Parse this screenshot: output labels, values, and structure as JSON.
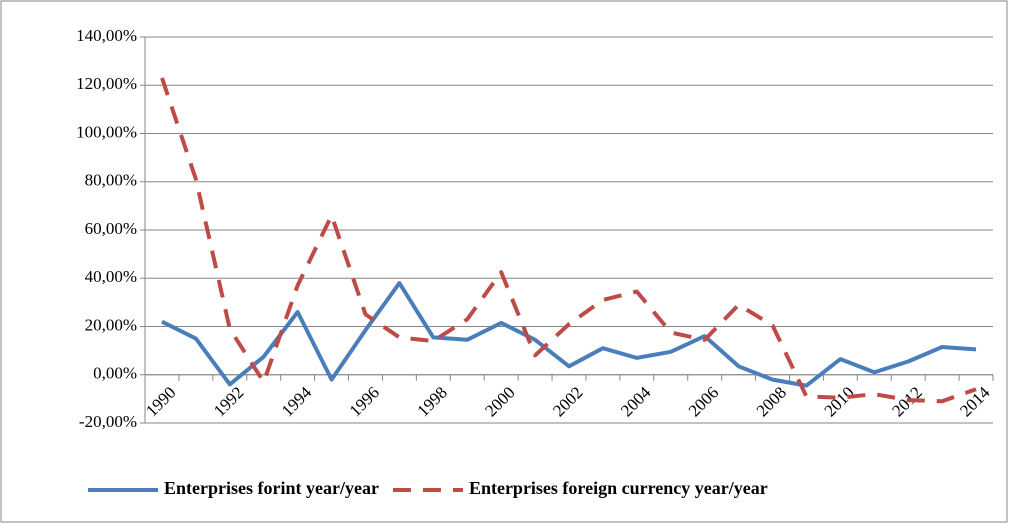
{
  "chart_data": {
    "type": "line",
    "categories": [
      "1990",
      null,
      "1992",
      null,
      "1994",
      null,
      "1996",
      null,
      "1998",
      null,
      "2000",
      null,
      "2002",
      null,
      "2004",
      null,
      "2006",
      null,
      "2008",
      null,
      "2010",
      null,
      "2012",
      null,
      "2014"
    ],
    "series": [
      {
        "name": "Enterprises forint year/year",
        "color": "#4a7ebb",
        "dash": "solid",
        "values": [
          22,
          15,
          -4,
          7.5,
          26,
          -2,
          18.5,
          38,
          15.5,
          14.5,
          21.5,
          14.5,
          3.5,
          11,
          7,
          9.5,
          16,
          3.5,
          -2,
          -4.5,
          6.5,
          1,
          5.5,
          11.5,
          10.5
        ]
      },
      {
        "name": "Enterprises foreign currency year/year",
        "color": "#be4b48",
        "dash": "dashed",
        "values": [
          123,
          81,
          19,
          -3,
          37,
          66,
          25,
          15.5,
          14,
          23,
          42.5,
          8,
          21,
          31,
          34.5,
          17.5,
          14.5,
          29,
          20.5,
          -9,
          -9.5,
          -8,
          -10.5,
          -11,
          -6
        ]
      }
    ],
    "ylim": [
      -20,
      140
    ],
    "yticks": [
      {
        "value": -20,
        "label": "-20,00%"
      },
      {
        "value": 0,
        "label": "0,00%"
      },
      {
        "value": 20,
        "label": "20,00%"
      },
      {
        "value": 40,
        "label": "40,00%"
      },
      {
        "value": 60,
        "label": "60,00%"
      },
      {
        "value": 80,
        "label": "80,00%"
      },
      {
        "value": 100,
        "label": "100,00%"
      },
      {
        "value": 120,
        "label": "120,00%"
      },
      {
        "value": 140,
        "label": "140,00%"
      }
    ],
    "grid": true,
    "legend": "bottom"
  }
}
